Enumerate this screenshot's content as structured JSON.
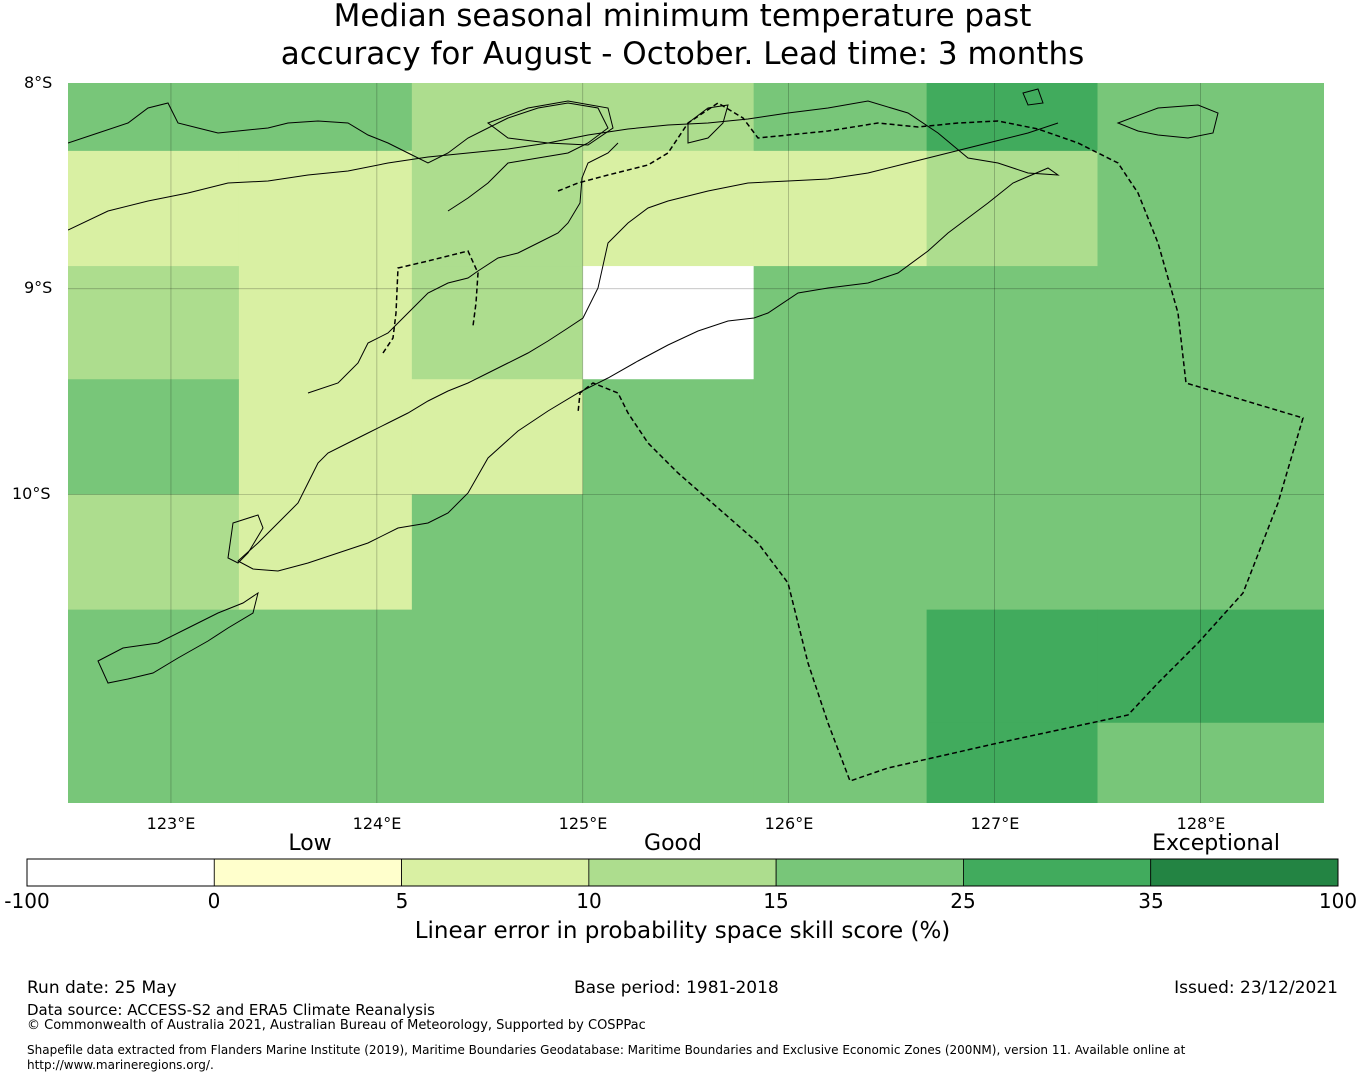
{
  "title_line1": "Median seasonal minimum temperature past",
  "title_line2": "accuracy for August - October. Lead time: 3 months",
  "map": {
    "lat_labels": [
      "8°S",
      "9°S",
      "10°S"
    ],
    "lon_labels": [
      "123°E",
      "124°E",
      "125°E",
      "126°E",
      "127°E",
      "128°E"
    ],
    "lon_range": [
      122.5,
      128.6
    ],
    "lat_range": [
      -8.0,
      -11.5
    ],
    "grid_lons": [
      122.5,
      123.33,
      124.17,
      125.0,
      125.83,
      126.67,
      127.5,
      128.6
    ],
    "grid_lats": [
      -8.0,
      -8.33,
      -8.89,
      -9.44,
      -10.0,
      -10.56,
      -11.11,
      -11.5
    ],
    "skill_grid": [
      [
        20,
        20,
        12,
        12,
        20,
        30,
        20
      ],
      [
        8,
        8,
        12,
        8,
        8,
        12,
        20
      ],
      [
        12,
        8,
        12,
        -100,
        20,
        20,
        20
      ],
      [
        20,
        8,
        8,
        20,
        20,
        20,
        20
      ],
      [
        12,
        8,
        20,
        20,
        20,
        20,
        20
      ],
      [
        20,
        20,
        20,
        20,
        20,
        30,
        30
      ],
      [
        20,
        20,
        20,
        20,
        20,
        30,
        20
      ]
    ]
  },
  "colorbar": {
    "categories": [
      "Low",
      "Good",
      "Exceptional"
    ],
    "ticks": [
      "-100",
      "0",
      "5",
      "10",
      "15",
      "25",
      "35",
      "100"
    ],
    "colors": [
      "#ffffff",
      "#ffffcc",
      "#d9f0a3",
      "#addd8e",
      "#78c679",
      "#41ab5d",
      "#238443"
    ],
    "label": "Linear error in probability space skill score (%)"
  },
  "footer": {
    "run_date": "Run date: 25 May",
    "base_period": "Base period: 1981-2018",
    "issued": "Issued: 23/12/2021",
    "data_source": "Data source: ACCESS-S2 and ERA5 Climate Reanalysis",
    "copyright": "© Commonwealth of Australia 2021, Australian Bureau of Meteorology, Supported by COSPPac",
    "shapefile_line1": "Shapefile data extracted from Flanders Marine Institute (2019), Maritime Boundaries Geodatabase: Maritime Boundaries and Exclusive Economic Zones (200NM), version 11. Available online at",
    "shapefile_line2": "http://www.marineregions.org/."
  }
}
